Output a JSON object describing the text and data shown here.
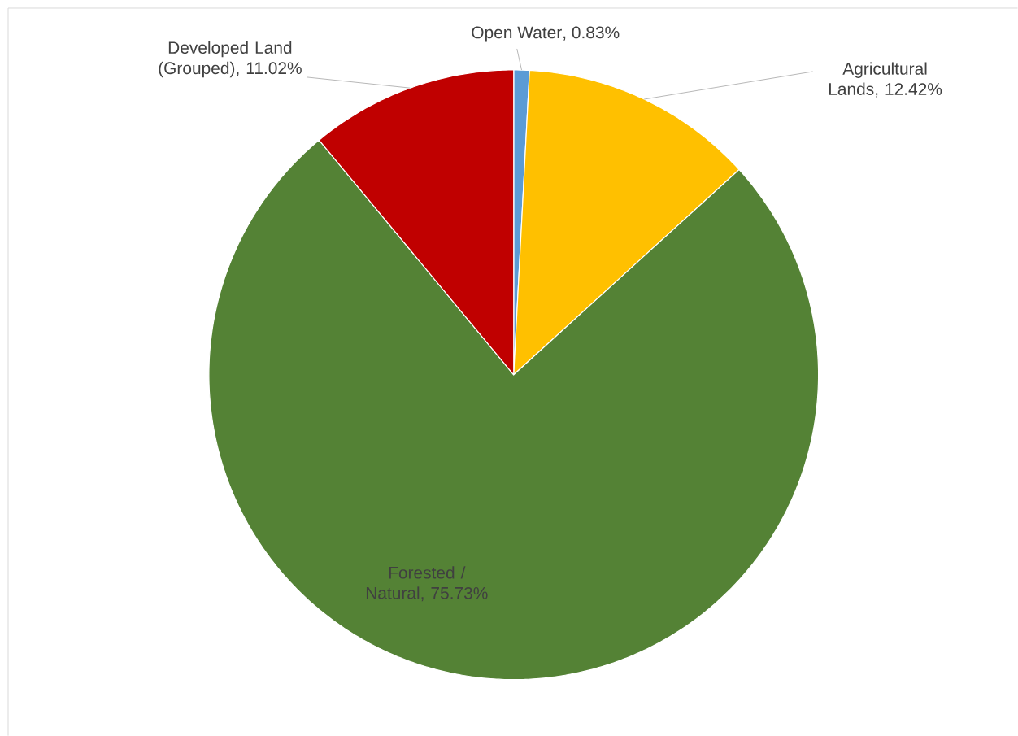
{
  "chart_data": {
    "type": "pie",
    "categories": [
      "Open Water",
      "Agricultural Lands",
      "Forested / Natural",
      "Developed Land (Grouped)"
    ],
    "values": [
      0.83,
      12.42,
      75.73,
      11.02
    ],
    "colors": [
      "#5b9bd5",
      "#ffc000",
      "#548235",
      "#c00000"
    ],
    "value_labels": [
      ", 0.83%",
      ", 12.42%",
      ", 75.73%",
      ", 11.02%"
    ]
  }
}
